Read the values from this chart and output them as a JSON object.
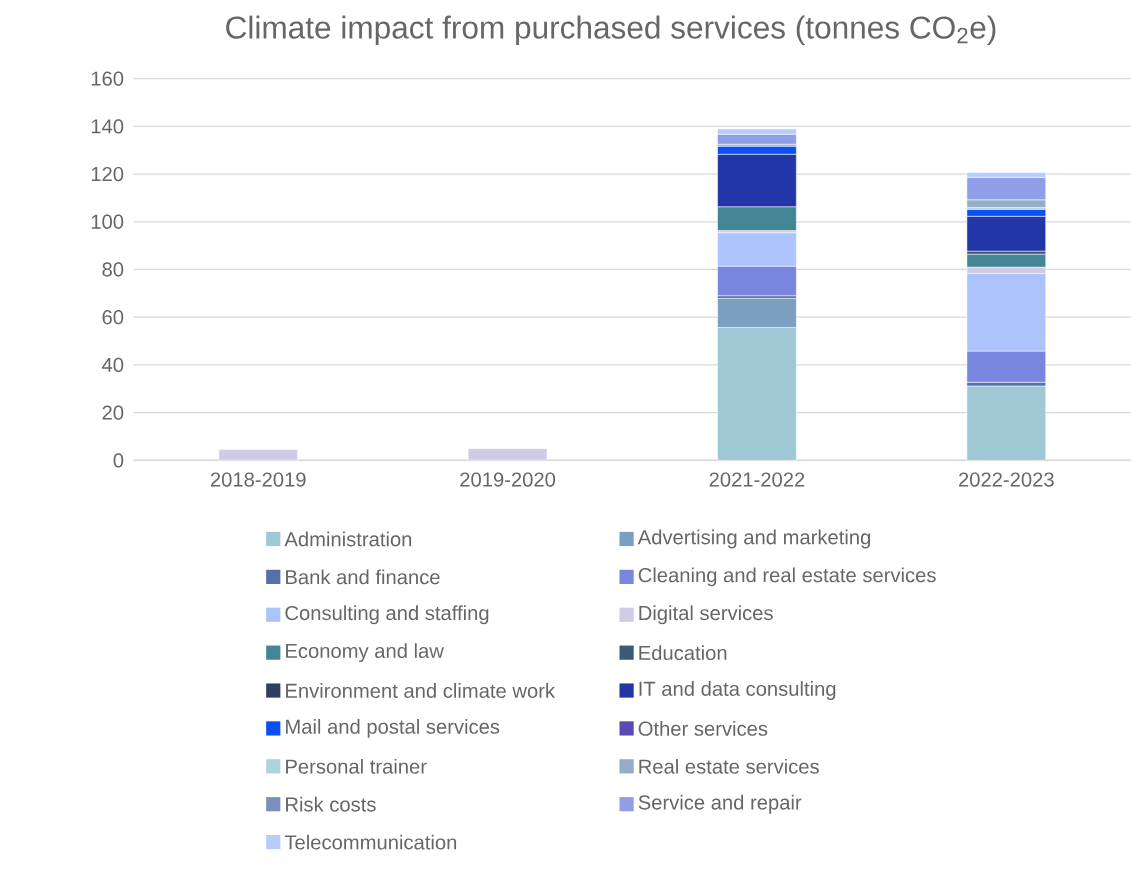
{
  "chart_data": {
    "type": "bar",
    "stacked": true,
    "title": "Climate impact from purchased services (tonnes CO$_{2}$e)",
    "categories": [
      "2018-2019",
      "2019-2020",
      "2021-2022",
      "2022-2023"
    ],
    "ylim": [
      0,
      160
    ],
    "yticks": [
      0,
      20,
      40,
      60,
      80,
      100,
      120,
      140,
      160
    ],
    "grid": "y",
    "legend": "bottom",
    "series": [
      {
        "name": "Administration",
        "color": "#9fc7d4",
        "values": [
          null,
          null,
          55.7,
          31.2
        ]
      },
      {
        "name": "Advertising and marketing",
        "color": "#7c9ebf",
        "values": [
          null,
          null,
          12.2,
          null
        ]
      },
      {
        "name": "Bank and finance",
        "color": "#5470a8",
        "values": [
          null,
          null,
          1.1,
          1.5
        ]
      },
      {
        "name": "Cleaning and real estate services",
        "color": "#7986e0",
        "values": [
          null,
          null,
          12.4,
          13.1
        ]
      },
      {
        "name": "Consulting and staffing",
        "color": "#adc3fb",
        "values": [
          null,
          null,
          14.0,
          32.5
        ]
      },
      {
        "name": "Digital services",
        "color": "#d0cce8",
        "values": [
          4.5,
          4.9,
          0.9,
          2.7
        ]
      },
      {
        "name": "Economy and law",
        "color": "#428595",
        "values": [
          null,
          null,
          10.0,
          5.4
        ]
      },
      {
        "name": "Education",
        "color": "#3b5a7a",
        "values": [
          null,
          null,
          null,
          1.3
        ]
      },
      {
        "name": "Environment and climate work",
        "color": "#2f3f63",
        "values": [
          null,
          null,
          null,
          null
        ]
      },
      {
        "name": "IT and data consulting",
        "color": "#2236a8",
        "values": [
          null,
          null,
          22.0,
          14.6
        ]
      },
      {
        "name": "Mail and postal services",
        "color": "#0b50f5",
        "values": [
          null,
          null,
          3.4,
          2.9
        ]
      },
      {
        "name": "Other services",
        "color": "#5a4bb4",
        "values": [
          null,
          null,
          null,
          null
        ]
      },
      {
        "name": "Personal trainer",
        "color": "#acd3da",
        "values": [
          null,
          null,
          null,
          0.8
        ]
      },
      {
        "name": "Real estate services",
        "color": "#94acc8",
        "values": [
          null,
          null,
          0.8,
          3.2
        ]
      },
      {
        "name": "Risk costs",
        "color": "#7a8fbd",
        "values": [
          null,
          null,
          null,
          null
        ]
      },
      {
        "name": "Service and repair",
        "color": "#8f9ee6",
        "values": [
          null,
          null,
          4.2,
          9.4
        ]
      },
      {
        "name": "Telecommunication",
        "color": "#b9cbfa",
        "values": [
          null,
          null,
          2.2,
          2.0
        ]
      }
    ]
  }
}
